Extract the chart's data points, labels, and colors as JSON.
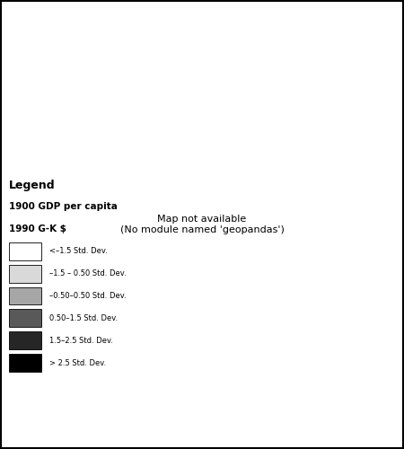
{
  "title": "",
  "legend_title1": "Legend",
  "legend_title2": "1900 GDP per capita",
  "legend_title3": "1990 G-K $",
  "legend_labels": [
    "<–1.5 Std. Dev.",
    "–1.5 – 0.50 Std. Dev.",
    "–0.50–0.50 Std. Dev.",
    "0.50–1.5 Std. Dev.",
    "1.5–2.5 Std. Dev.",
    "> 2.5 Std. Dev."
  ],
  "legend_colors": [
    "#ffffff",
    "#d9d9d9",
    "#a6a6a6",
    "#595959",
    "#262626",
    "#000000"
  ],
  "border_color": "#000000",
  "background_color": "#ffffff",
  "figure_background": "#f0f0f0",
  "border_linewidth": 0.3,
  "figsize": [
    4.5,
    5.0
  ],
  "dpi": 100
}
